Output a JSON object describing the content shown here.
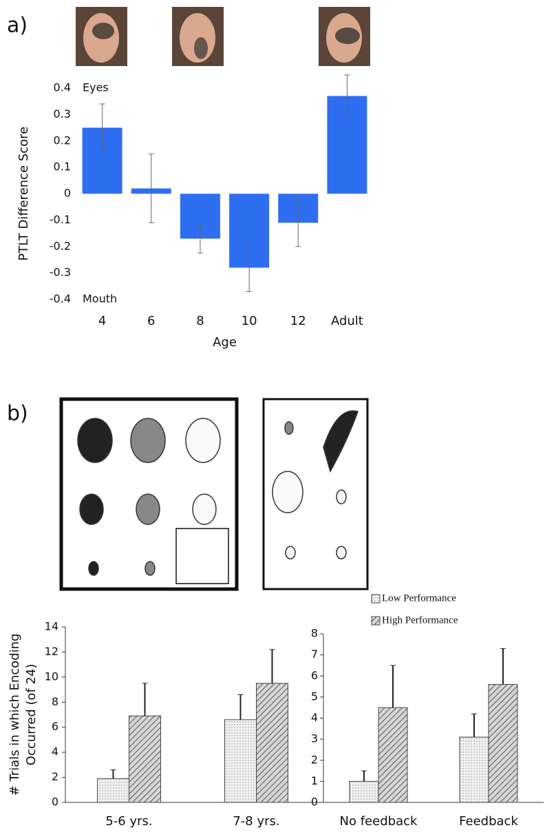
{
  "panel_labels": [
    "a)",
    "b)"
  ],
  "chart_data": [
    {
      "type": "bar",
      "title": null,
      "x_label": "Age",
      "y_label": "PTLT Difference Score",
      "annotations": [
        "Eyes",
        "Mouth"
      ],
      "categories": [
        "4",
        "6",
        "8",
        "10",
        "12",
        "Adult"
      ],
      "values": [
        0.25,
        0.02,
        -0.17,
        -0.28,
        -0.11,
        0.37
      ],
      "errors": [
        0.09,
        0.13,
        0.055,
        0.09,
        0.09,
        0.08
      ],
      "error_direction": "both",
      "color": "#2e6ef0",
      "ylim": [
        -0.4,
        0.4
      ],
      "yticks": [
        -0.4,
        -0.3,
        -0.2,
        -0.1,
        0,
        0.1,
        0.2,
        0.3,
        0.4
      ],
      "axes": false
    },
    {
      "type": "bar",
      "y_label": [
        "# Trials in which Encoding",
        "Occurred (of 24)"
      ],
      "categories": [
        "5-6 yrs.",
        "7-8 yrs."
      ],
      "series": [
        {
          "color": "#e6e6e6",
          "pattern": "dots",
          "values": [
            1.9,
            6.6
          ],
          "errors": [
            0.7,
            2.0
          ]
        },
        {
          "color": "#bdbdbd",
          "pattern": "hatch",
          "values": [
            6.9,
            9.5
          ],
          "errors": [
            2.6,
            2.7
          ]
        }
      ],
      "error_direction": "plus",
      "ylim": [
        0,
        14
      ],
      "yticks": [
        0,
        2,
        4,
        6,
        8,
        10,
        12,
        14
      ],
      "axes": true
    },
    {
      "type": "bar",
      "categories": [
        "No feedback",
        "Feedback"
      ],
      "series": [
        {
          "name": "Low Performance",
          "color": "#e6e6e6",
          "pattern": "dots",
          "values": [
            1.0,
            3.1
          ],
          "errors": [
            0.5,
            1.1
          ]
        },
        {
          "name": "High Performance",
          "color": "#bdbdbd",
          "pattern": "hatch",
          "values": [
            4.5,
            5.6
          ],
          "errors": [
            2.0,
            1.7
          ]
        }
      ],
      "error_direction": "plus",
      "legend": "top",
      "ylim": [
        0,
        8
      ],
      "yticks": [
        0,
        1,
        2,
        3,
        4,
        5,
        6,
        7,
        8
      ],
      "axes": true
    }
  ]
}
